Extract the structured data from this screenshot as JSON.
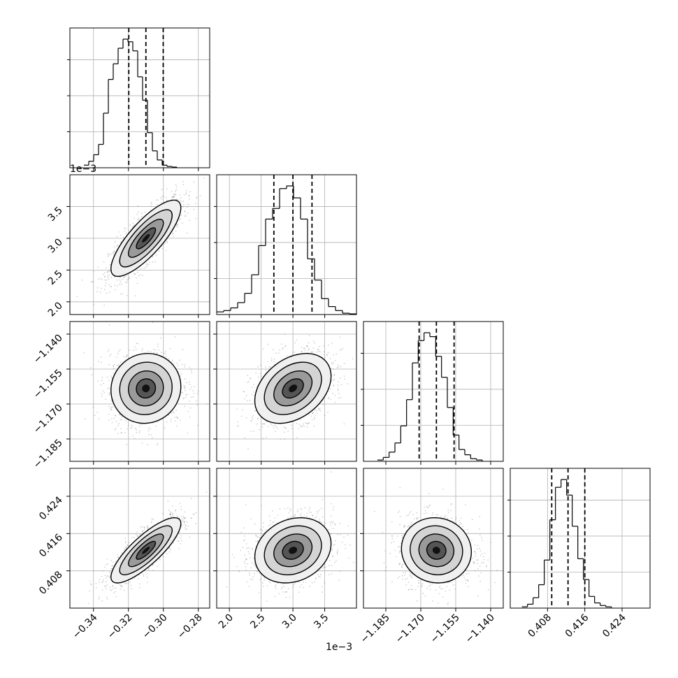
{
  "chart_data": {
    "type": "corner",
    "parameters": [
      {
        "ticks": [
          -0.34,
          -0.32,
          -0.3,
          -0.28
        ],
        "tick_labels": [
          "−0.34",
          "−0.32",
          "−0.30",
          "−0.28"
        ],
        "range": [
          -0.3535,
          -0.2735
        ],
        "offset_label": "",
        "quantiles": [
          -0.3198,
          -0.31,
          -0.3001
        ],
        "hist": {
          "bin_start": -0.3455,
          "bin_width": 0.0028,
          "counts": [
            0.02,
            0.05,
            0.1,
            0.18,
            0.42,
            0.68,
            0.8,
            0.92,
            0.99,
            0.97,
            0.9,
            0.7,
            0.52,
            0.27,
            0.13,
            0.06,
            0.02,
            0.01,
            0.005
          ]
        }
      },
      {
        "ticks": [
          2.0,
          2.5,
          3.0,
          3.5
        ],
        "tick_labels": [
          "2.0",
          "2.5",
          "3.0",
          "3.5"
        ],
        "range": [
          1.8,
          4.0
        ],
        "offset_label": "1e−3",
        "quantiles": [
          2.7,
          3.0,
          3.3
        ],
        "hist": {
          "bin_start": 1.8,
          "bin_width": 0.11,
          "counts": [
            0.02,
            0.03,
            0.05,
            0.09,
            0.16,
            0.3,
            0.52,
            0.72,
            0.8,
            0.95,
            0.97,
            0.88,
            0.72,
            0.42,
            0.26,
            0.12,
            0.06,
            0.03,
            0.01,
            0.005
          ]
        }
      },
      {
        "ticks": [
          -1.185,
          -1.17,
          -1.155,
          -1.14
        ],
        "tick_labels": [
          "−1.185",
          "−1.170",
          "−1.155",
          "−1.140"
        ],
        "range": [
          -1.1946,
          -1.1346
        ],
        "offset_label": "",
        "quantiles": [
          -1.1707,
          -1.1633,
          -1.1557
        ],
        "hist": {
          "bin_start": -1.1886,
          "bin_width": 0.0025,
          "counts": [
            0.01,
            0.03,
            0.07,
            0.14,
            0.27,
            0.47,
            0.75,
            0.92,
            0.98,
            0.95,
            0.8,
            0.64,
            0.41,
            0.2,
            0.09,
            0.05,
            0.02,
            0.01
          ]
        }
      },
      {
        "ticks": [
          0.408,
          0.416,
          0.424
        ],
        "tick_labels": [
          "0.408",
          "0.416",
          "0.424"
        ],
        "range": [
          0.4,
          0.43
        ],
        "offset_label": "",
        "quantiles": [
          0.4089,
          0.4124,
          0.416
        ],
        "hist": {
          "bin_start": 0.4025,
          "bin_width": 0.0012,
          "counts": [
            0.01,
            0.03,
            0.08,
            0.18,
            0.37,
            0.68,
            0.93,
            0.99,
            0.87,
            0.63,
            0.38,
            0.22,
            0.09,
            0.04,
            0.02,
            0.01
          ]
        }
      }
    ],
    "pairs": [
      {
        "row": 1,
        "col": 0,
        "center": [
          -0.31,
          3.0
        ],
        "sigma": [
          0.01,
          0.3
        ],
        "corr": 0.8
      },
      {
        "row": 2,
        "col": 0,
        "center": [
          -0.31,
          -1.1633
        ],
        "sigma": [
          0.01,
          0.0075
        ],
        "corr": 0.05
      },
      {
        "row": 2,
        "col": 1,
        "center": [
          3.0,
          -1.1633
        ],
        "sigma": [
          0.3,
          0.0075
        ],
        "corr": 0.35
      },
      {
        "row": 3,
        "col": 0,
        "center": [
          -0.31,
          0.4124
        ],
        "sigma": [
          0.01,
          0.0035
        ],
        "corr": 0.82
      },
      {
        "row": 3,
        "col": 1,
        "center": [
          3.0,
          0.4124
        ],
        "sigma": [
          0.3,
          0.0035
        ],
        "corr": 0.2
      },
      {
        "row": 3,
        "col": 2,
        "center": [
          -1.1633,
          0.4124
        ],
        "sigma": [
          0.0075,
          0.0035
        ],
        "corr": -0.05
      }
    ],
    "grid": true,
    "colors": {
      "line": "#000000",
      "grid": "#b0b0b0",
      "points": "#7f7f7f"
    }
  }
}
